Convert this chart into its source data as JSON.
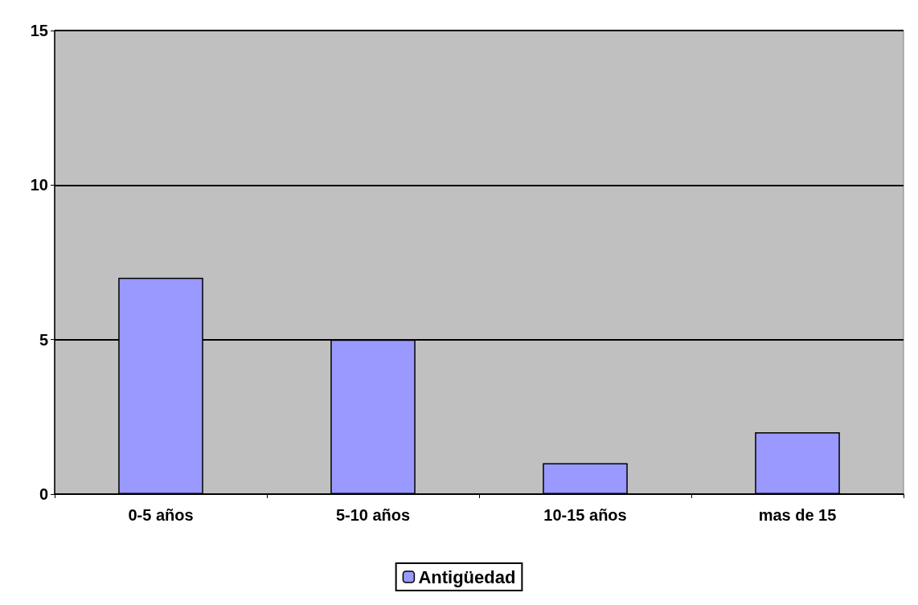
{
  "chart_data": {
    "type": "bar",
    "categories": [
      "0-5 años",
      "5-10 años",
      "10-15 años",
      "mas de 15"
    ],
    "series": [
      {
        "name": "Antigüedad",
        "color": "#9999ff",
        "values": [
          7,
          5,
          1,
          2
        ]
      }
    ],
    "ylim": [
      0,
      15
    ],
    "yticks": [
      0,
      5,
      10,
      15
    ],
    "grid": "y",
    "legend": "bottom"
  }
}
